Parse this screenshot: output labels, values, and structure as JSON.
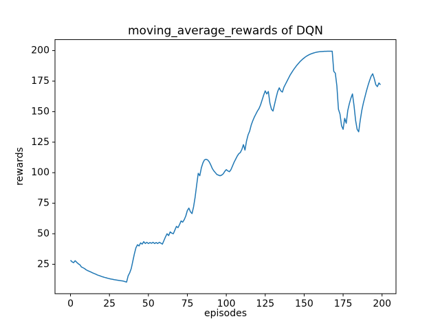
{
  "figure": {
    "background": "#ffffff",
    "text_color": "#000000",
    "spine_color": "#000000"
  },
  "chart_data": {
    "type": "line",
    "title": "moving_average_rewards of DQN",
    "xlabel": "episodes",
    "ylabel": "rewards",
    "x_ticks": [
      0,
      25,
      50,
      75,
      100,
      125,
      150,
      175,
      200
    ],
    "y_ticks": [
      25,
      50,
      75,
      100,
      125,
      150,
      175,
      200
    ],
    "xlim": [
      -9.95,
      208.95
    ],
    "ylim": [
      0.9,
      209.0
    ],
    "grid": false,
    "legend": false,
    "line_color": "#1f77b4",
    "line_width": 1.5,
    "x_start": 0,
    "x_step": 1,
    "values": [
      28.3,
      27.0,
      26.3,
      27.9,
      26.6,
      25.4,
      24.6,
      22.8,
      22.2,
      21.5,
      20.5,
      19.8,
      19.3,
      18.7,
      18.1,
      17.5,
      17.0,
      16.4,
      15.9,
      15.5,
      15.0,
      14.6,
      14.2,
      13.9,
      13.5,
      13.2,
      12.9,
      12.7,
      12.4,
      12.2,
      12.0,
      11.8,
      11.6,
      11.4,
      11.2,
      10.8,
      10.4,
      15.5,
      18.0,
      21.5,
      27.5,
      33.5,
      38.5,
      41.0,
      40.0,
      42.5,
      41.5,
      43.5,
      42.0,
      43.0,
      42.0,
      42.8,
      42.2,
      43.0,
      42.0,
      42.8,
      42.0,
      43.0,
      42.3,
      41.5,
      44.5,
      47.5,
      50.0,
      48.5,
      51.5,
      50.5,
      50.0,
      53.0,
      56.0,
      55.0,
      57.5,
      60.5,
      59.5,
      61.5,
      64.5,
      69.0,
      71.0,
      68.0,
      66.5,
      72.0,
      80.0,
      90.0,
      99.5,
      97.5,
      104.0,
      108.0,
      110.5,
      111.0,
      110.5,
      109.0,
      106.5,
      103.5,
      101.5,
      100.0,
      98.5,
      98.0,
      97.5,
      98.0,
      99.0,
      101.0,
      102.5,
      101.5,
      100.8,
      102.5,
      105.5,
      108.5,
      111.0,
      113.5,
      115.5,
      116.5,
      119.0,
      123.0,
      118.5,
      126.0,
      131.0,
      134.0,
      139.0,
      142.5,
      145.5,
      148.0,
      150.5,
      152.5,
      155.5,
      159.5,
      163.5,
      167.0,
      164.5,
      166.5,
      157.0,
      152.0,
      150.5,
      156.0,
      161.5,
      166.5,
      169.5,
      167.0,
      166.0,
      170.0,
      172.5,
      175.0,
      177.5,
      180.0,
      182.0,
      184.0,
      185.8,
      187.5,
      189.0,
      190.5,
      191.8,
      193.0,
      194.0,
      195.0,
      195.8,
      196.5,
      197.1,
      197.6,
      198.0,
      198.4,
      198.7,
      198.9,
      199.1,
      199.2,
      199.3,
      199.4,
      199.4,
      199.5,
      199.5,
      199.5,
      199.5,
      183.0,
      181.5,
      171.0,
      152.0,
      148.0,
      138.5,
      135.5,
      144.5,
      140.5,
      151.0,
      156.5,
      161.0,
      164.5,
      155.0,
      143.0,
      135.5,
      133.5,
      143.0,
      151.0,
      157.0,
      162.0,
      167.0,
      171.5,
      175.5,
      179.0,
      181.0,
      177.0,
      172.0,
      170.5,
      173.5,
      172.0
    ]
  }
}
